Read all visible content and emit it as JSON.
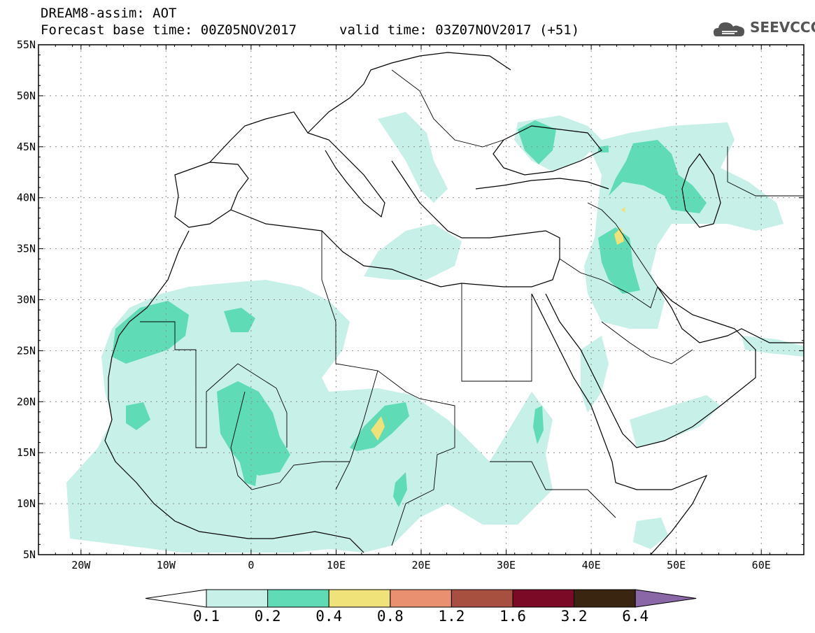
{
  "header": {
    "title": "DREAM8-assim: AOT",
    "base_time": "Forecast base time: 00Z05NOV2017",
    "valid_time": "valid time: 03Z07NOV2017 (+51)"
  },
  "logo": {
    "text": "SEEVCCC",
    "icon": "cloud-icon"
  },
  "map": {
    "lon_range": [
      -25,
      65
    ],
    "lat_range": [
      5,
      55
    ],
    "lat_labels": [
      "55N",
      "50N",
      "45N",
      "40N",
      "35N",
      "30N",
      "25N",
      "20N",
      "15N",
      "10N",
      "5N"
    ],
    "lon_labels": [
      "20W",
      "10W",
      "0",
      "10E",
      "20E",
      "30E",
      "40E",
      "50E",
      "60E"
    ]
  },
  "colorbar": {
    "labels": [
      "0.1",
      "0.2",
      "0.4",
      "0.8",
      "1.2",
      "1.6",
      "3.2",
      "6.4"
    ],
    "colors": [
      "#c6f0e8",
      "#5fdcb5",
      "#f0e178",
      "#e89070",
      "#a85040",
      "#7a0a25",
      "#3a2510",
      "#8a68a8"
    ],
    "low_arrow_color": "#ffffff"
  },
  "palette": {
    "coast": "#000000",
    "grid": "#8c8c8c"
  }
}
